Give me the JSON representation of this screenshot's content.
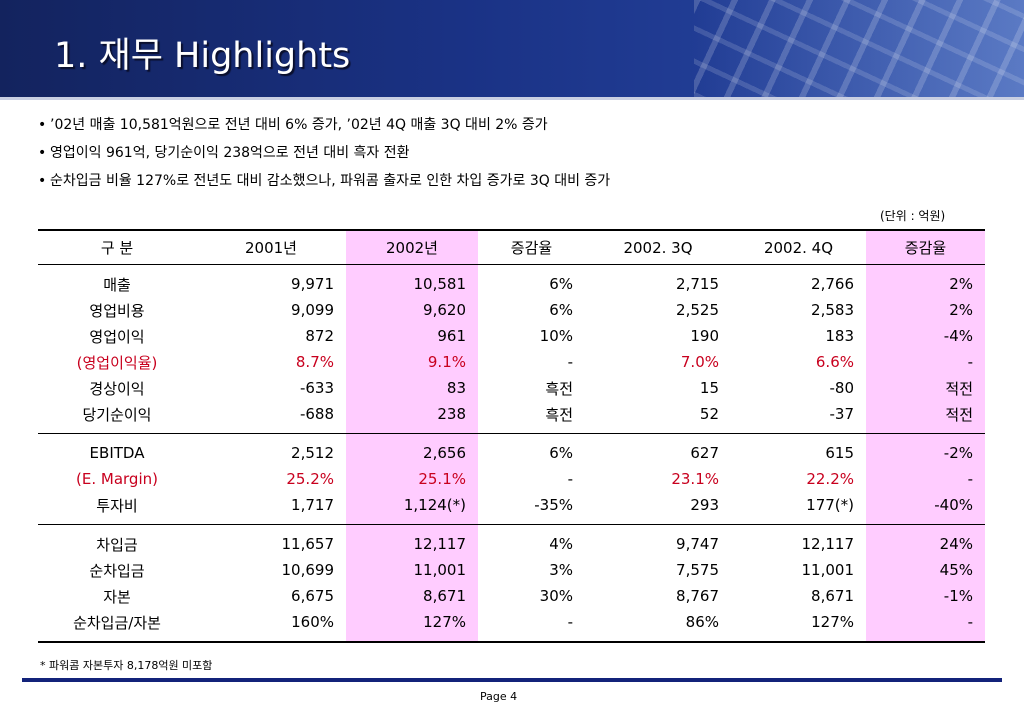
{
  "header": {
    "title": "1. 재무 Highlights"
  },
  "bullets": [
    "’02년 매출 10,581억원으로 전년 대비 6% 증가, ’02년 4Q 매출 3Q 대비 2% 증가",
    "영업이익 961억, 당기순이익 238억으로 전년 대비 흑자 전환",
    "순차입금 비율 127%로 전년도 대비 감소했으나, 파워콤 출자로 인한 차입 증가로 3Q 대비 증가"
  ],
  "bullet_mark": "•",
  "unit_note": "(단위 : 억원)",
  "table": {
    "headers": [
      "구 분",
      "2001년",
      "2002년",
      "증감율",
      "2002. 3Q",
      "2002. 4Q",
      "증감율"
    ],
    "groups": [
      [
        [
          "매출",
          "9,971",
          "10,581",
          "6%",
          "2,715",
          "2,766",
          "2%"
        ],
        [
          "영업비용",
          "9,099",
          "9,620",
          "6%",
          "2,525",
          "2,583",
          "2%"
        ],
        [
          "영업이익",
          "872",
          "961",
          "10%",
          "190",
          "183",
          "-4%"
        ],
        [
          "(영업이익율)",
          "8.7%",
          "9.1%",
          "-",
          "7.0%",
          "6.6%",
          "-"
        ],
        [
          "경상이익",
          "-633",
          "83",
          "흑전",
          "15",
          "-80",
          "적전"
        ],
        [
          "당기순이익",
          "-688",
          "238",
          "흑전",
          "52",
          "-37",
          "적전"
        ]
      ],
      [
        [
          "EBITDA",
          "2,512",
          "2,656",
          "6%",
          "627",
          "615",
          "-2%"
        ],
        [
          "(E. Margin)",
          "25.2%",
          "25.1%",
          "-",
          "23.1%",
          "22.2%",
          "-"
        ],
        [
          "투자비",
          "1,717",
          "1,124(*)",
          "-35%",
          "293",
          "177(*)",
          "-40%"
        ]
      ],
      [
        [
          "차입금",
          "11,657",
          "12,117",
          "4%",
          "9,747",
          "12,117",
          "24%"
        ],
        [
          "순차입금",
          "10,699",
          "11,001",
          "3%",
          "7,575",
          "11,001",
          "45%"
        ],
        [
          "자본",
          "6,675",
          "8,671",
          "30%",
          "8,767",
          "8,671",
          "-1%"
        ],
        [
          "순차입금/자본",
          "160%",
          "127%",
          "-",
          "86%",
          "127%",
          "-"
        ]
      ]
    ]
  },
  "footnote": "* 파워콤 자본투자 8,178억원 미포함",
  "page_label": "Page 4",
  "colors": {
    "header_blue": "#1a3285",
    "highlight_pink": "#ffccff",
    "ratio_red": "#c8001e",
    "footer_bar": "#13237a"
  }
}
